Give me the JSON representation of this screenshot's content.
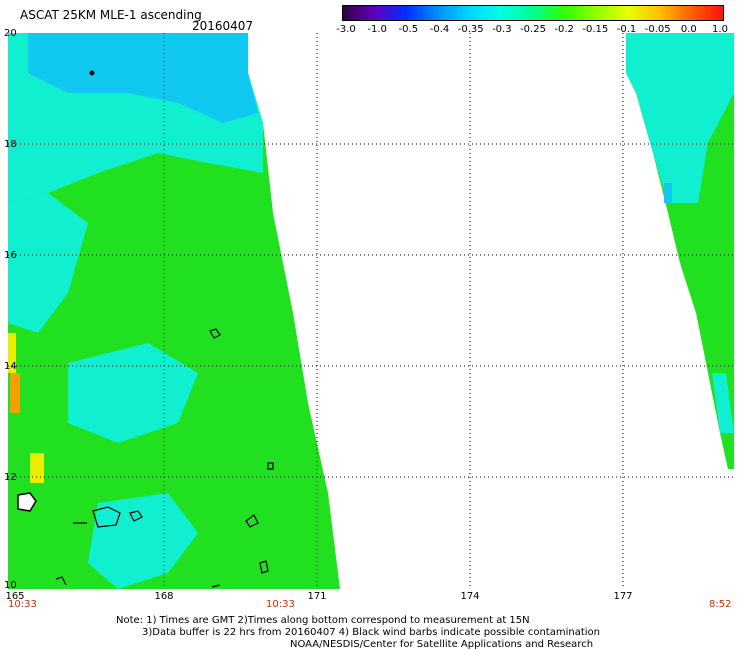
{
  "header": {
    "title": "ASCAT 25KM MLE-1 ascending",
    "date": "20160407"
  },
  "colorbar": {
    "labels": [
      "-3.0",
      "-1.0",
      "-0.5",
      "-0.4",
      "-0.35",
      "-0.3",
      "-0.25",
      "-0.2",
      "-0.15",
      "-0.1",
      "-0.05",
      "0.0",
      "1.0"
    ],
    "colors": [
      "#300040",
      "#6000c0",
      "#0030ff",
      "#0090ff",
      "#00d8ff",
      "#00ffe0",
      "#00ff90",
      "#30ff00",
      "#90ff00",
      "#e8ff00",
      "#ffc000",
      "#ff6000",
      "#ff1010"
    ]
  },
  "map": {
    "lat_labels": [
      "20",
      "18",
      "16",
      "14",
      "12",
      "10"
    ],
    "lon_labels": [
      "165",
      "168",
      "171",
      "174",
      "177"
    ],
    "lat_range": [
      10,
      20
    ],
    "lon_range": [
      165,
      179.3
    ],
    "grid_color": "#000000",
    "swath_colors": {
      "green": "#20e020",
      "cyan": "#10f0d0",
      "blue": "#10c8f0",
      "yellow": "#e8f000",
      "orange": "#f0a000"
    }
  },
  "times": {
    "left": "10:33",
    "middle": "10:33",
    "right": "8:52",
    "color": "#c83000"
  },
  "notes": {
    "line1": "Note: 1) Times are GMT 2)Times along bottom correspond to measurement at 15N",
    "line2": "3)Data buffer is 22 hrs from 20160407 4) Black wind barbs indicate possible contamination",
    "line3": "NOAA/NESDIS/Center for Satellite Applications and Research"
  }
}
